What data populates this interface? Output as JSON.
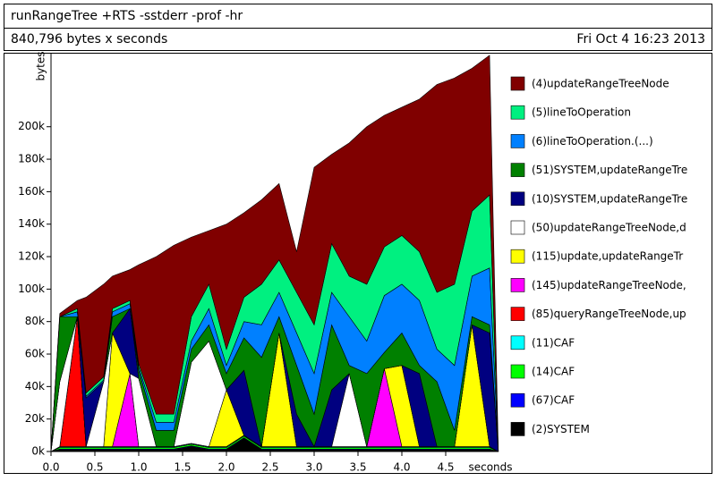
{
  "chart_data": {
    "type": "stacked-area",
    "title": "runRangeTree +RTS -sstderr -prof -hr",
    "subtitle": "840,796 bytes x seconds",
    "date": "Fri Oct  4 16:23 2013",
    "ylabel": "bytes",
    "xlabel": "seconds",
    "xlim": [
      0,
      5.1
    ],
    "ylim": [
      0,
      245
    ],
    "xticks": [
      {
        "value": 0,
        "label": "0.0"
      },
      0.5,
      {
        "value": 1,
        "label": "1.0"
      },
      1.5,
      {
        "value": 2,
        "label": "2.0"
      },
      2.5,
      {
        "value": 3,
        "label": "3.0"
      },
      3.5,
      {
        "value": 4,
        "label": "4.0"
      },
      4.5
    ],
    "yticks": [
      {
        "value": 0,
        "label": "0k"
      },
      {
        "value": 20,
        "label": "20k"
      },
      {
        "value": 40,
        "label": "40k"
      },
      {
        "value": 60,
        "label": "60k"
      },
      {
        "value": 80,
        "label": "80k"
      },
      {
        "value": 100,
        "label": "100k"
      },
      {
        "value": 120,
        "label": "120k"
      },
      {
        "value": 140,
        "label": "140k"
      },
      {
        "value": 160,
        "label": "160k"
      },
      {
        "value": 180,
        "label": "180k"
      },
      {
        "value": 200,
        "label": "200k"
      }
    ],
    "x": [
      0,
      0.1,
      0.3,
      0.4,
      0.6,
      0.7,
      0.9,
      1.0,
      1.2,
      1.4,
      1.6,
      1.8,
      2.0,
      2.2,
      2.4,
      2.6,
      2.8,
      3.0,
      3.2,
      3.4,
      3.6,
      3.8,
      4.0,
      4.2,
      4.4,
      4.6,
      4.8,
      5.0,
      5.1
    ],
    "series": [
      {
        "name": "(4)updateRangeTreeNode",
        "color": "#800000",
        "values": [
          0,
          2,
          5,
          59,
          57,
          20,
          19,
          61,
          97,
          104,
          49,
          33,
          77,
          52,
          52,
          47,
          25,
          97,
          55,
          82,
          97,
          81,
          79,
          94,
          128,
          127,
          88,
          86,
          0
        ]
      },
      {
        "name": "(5)lineToOperation",
        "color": "#00f080",
        "values": [
          0,
          0,
          2,
          2,
          2,
          2,
          2,
          2,
          5,
          5,
          15,
          15,
          10,
          15,
          25,
          20,
          25,
          30,
          30,
          25,
          35,
          30,
          30,
          30,
          35,
          50,
          40,
          45,
          0
        ]
      },
      {
        "name": "(6)lineToOperation.(...)",
        "color": "#0080ff",
        "values": [
          0,
          0,
          3,
          1,
          1,
          3,
          3,
          2,
          5,
          5,
          5,
          10,
          5,
          10,
          20,
          15,
          20,
          25,
          20,
          30,
          20,
          35,
          30,
          40,
          20,
          40,
          25,
          35,
          0
        ]
      },
      {
        "name": "(51)SYSTEM,updateRangeTre",
        "color": "#008000",
        "values": [
          0,
          40,
          0,
          0,
          0,
          10,
          0,
          5,
          10,
          10,
          8,
          10,
          10,
          20,
          55,
          10,
          30,
          20,
          40,
          5,
          45,
          10,
          20,
          5,
          40,
          10,
          5,
          5,
          0
        ]
      },
      {
        "name": "(10)SYSTEM,updateRangeTre",
        "color": "#000080",
        "values": [
          0,
          0,
          0,
          30,
          0,
          0,
          40,
          0,
          0,
          0,
          0,
          0,
          0,
          40,
          0,
          0,
          20,
          0,
          35,
          0,
          0,
          0,
          0,
          45,
          0,
          0,
          0,
          70,
          0
        ]
      },
      {
        "name": "(50)updateRangeTreeNode,d",
        "color": "#ffffff",
        "values": [
          0,
          40,
          0,
          0,
          40,
          0,
          0,
          42,
          0,
          0,
          50,
          65,
          0,
          0,
          0,
          0,
          0,
          0,
          0,
          45,
          0,
          0,
          0,
          0,
          0,
          0,
          0,
          0,
          0
        ]
      },
      {
        "name": "(115)update,updateRangeTr",
        "color": "#ffff00",
        "values": [
          0,
          0,
          0,
          0,
          0,
          70,
          0,
          0,
          0,
          0,
          0,
          0,
          35,
          0,
          0,
          70,
          0,
          0,
          0,
          0,
          0,
          0,
          50,
          0,
          0,
          0,
          75,
          0,
          0
        ]
      },
      {
        "name": "(145)updateRangeTreeNode,",
        "color": "#ff00ff",
        "values": [
          0,
          0,
          0,
          0,
          0,
          0,
          45,
          0,
          0,
          0,
          0,
          0,
          0,
          0,
          0,
          0,
          0,
          0,
          0,
          0,
          0,
          48,
          0,
          0,
          0,
          0,
          0,
          0,
          0
        ]
      },
      {
        "name": "(85)queryRangeTreeNode,up",
        "color": "#ff0000",
        "values": [
          0,
          0,
          80,
          0,
          0,
          0,
          0,
          0,
          0,
          0,
          0,
          0,
          0,
          0,
          0,
          0,
          0,
          0,
          0,
          0,
          0,
          0,
          0,
          0,
          0,
          0,
          0,
          0,
          0
        ]
      },
      {
        "name": "(11)CAF",
        "color": "#00ffff",
        "values": [
          0,
          0.5,
          0.5,
          0.5,
          0.5,
          0.5,
          0.5,
          0.5,
          0.5,
          0.5,
          0.5,
          0.5,
          0.5,
          0.5,
          0.5,
          0.5,
          0.5,
          0.5,
          0.5,
          0.5,
          0.5,
          0.5,
          0.5,
          0.5,
          0.5,
          0.5,
          0.5,
          0.5,
          0
        ]
      },
      {
        "name": "(14)CAF",
        "color": "#00ff00",
        "values": [
          0,
          1,
          1,
          1,
          1,
          1,
          1,
          1,
          1,
          1,
          1,
          1,
          1,
          1,
          1,
          1,
          1,
          1,
          1,
          1,
          1,
          1,
          1,
          1,
          1,
          1,
          1,
          1,
          0
        ]
      },
      {
        "name": "(67)CAF",
        "color": "#0000ff",
        "values": [
          0,
          0.5,
          0.5,
          0.5,
          0.5,
          0.5,
          0.5,
          0.5,
          0.5,
          0.5,
          0.5,
          0.5,
          0.5,
          0.5,
          0.5,
          0.5,
          0.5,
          0.5,
          0.5,
          0.5,
          0.5,
          0.5,
          0.5,
          0.5,
          0.5,
          0.5,
          0.5,
          0.5,
          0
        ]
      },
      {
        "name": "(2)SYSTEM",
        "color": "#000000",
        "values": [
          0,
          1,
          1,
          1,
          1,
          1,
          1,
          1,
          1,
          1,
          3,
          1,
          1,
          8,
          1,
          1,
          1,
          1,
          1,
          1,
          1,
          1,
          1,
          1,
          1,
          1,
          1,
          1,
          0
        ]
      }
    ]
  }
}
